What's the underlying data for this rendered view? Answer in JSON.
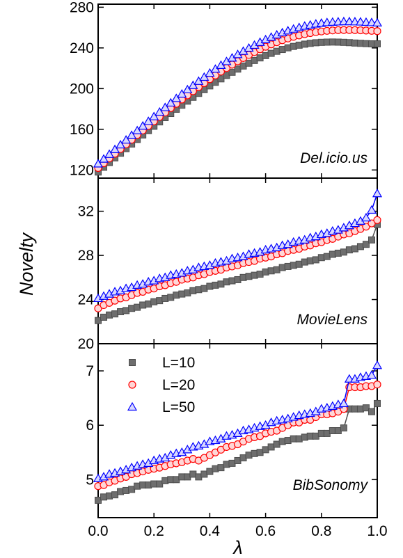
{
  "chart_data": [
    {
      "type": "line",
      "annotation": "Del.icio.us",
      "x": [
        0.0,
        0.02,
        0.04,
        0.06,
        0.08,
        0.1,
        0.12,
        0.14,
        0.16,
        0.18,
        0.2,
        0.22,
        0.24,
        0.26,
        0.28,
        0.3,
        0.32,
        0.34,
        0.36,
        0.38,
        0.4,
        0.42,
        0.44,
        0.46,
        0.48,
        0.5,
        0.52,
        0.54,
        0.56,
        0.58,
        0.6,
        0.62,
        0.64,
        0.66,
        0.68,
        0.7,
        0.72,
        0.74,
        0.76,
        0.78,
        0.8,
        0.82,
        0.84,
        0.86,
        0.88,
        0.9,
        0.92,
        0.94,
        0.96,
        0.98,
        1.0
      ],
      "series": [
        {
          "values": [
            118.0,
            122.7,
            127.3,
            131.9,
            136.5,
            141.0,
            145.5,
            150.0,
            154.4,
            158.7,
            163.0,
            167.3,
            171.5,
            175.6,
            179.7,
            183.7,
            187.7,
            191.5,
            195.3,
            199.0,
            202.7,
            206.2,
            209.6,
            212.9,
            216.1,
            219.2,
            222.2,
            225.0,
            227.7,
            230.2,
            232.5,
            234.7,
            236.7,
            238.5,
            240.1,
            241.5,
            242.7,
            243.7,
            244.5,
            245.1,
            245.5,
            245.7,
            245.8,
            245.7,
            245.5,
            245.2,
            244.8,
            244.5,
            244.2,
            244.0,
            244.0
          ]
        },
        {
          "values": [
            122.0,
            126.7,
            131.4,
            136.0,
            140.6,
            145.2,
            149.8,
            154.4,
            158.9,
            163.3,
            167.8,
            172.2,
            176.5,
            180.8,
            185.1,
            189.3,
            193.4,
            197.5,
            201.5,
            205.4,
            209.3,
            213.0,
            216.7,
            220.2,
            223.6,
            226.9,
            230.1,
            233.1,
            236.0,
            238.7,
            241.2,
            243.5,
            245.6,
            247.6,
            249.3,
            250.9,
            252.3,
            253.5,
            254.6,
            255.5,
            256.2,
            256.8,
            257.2,
            257.5,
            257.6,
            257.6,
            257.5,
            257.3,
            257.1,
            256.8,
            256.5
          ]
        },
        {
          "values": [
            126.0,
            130.7,
            135.4,
            140.1,
            144.7,
            149.4,
            154.0,
            158.6,
            163.2,
            167.8,
            172.4,
            176.9,
            181.4,
            185.9,
            190.3,
            194.6,
            198.9,
            203.1,
            207.2,
            211.2,
            215.2,
            219.1,
            222.9,
            226.6,
            230.1,
            233.5,
            236.7,
            239.8,
            242.7,
            245.5,
            248.1,
            250.5,
            252.8,
            254.9,
            256.8,
            258.5,
            260.0,
            261.4,
            262.5,
            263.5,
            264.3,
            264.9,
            265.3,
            265.6,
            265.8,
            265.8,
            265.7,
            265.5,
            265.2,
            264.9,
            264.6
          ]
        }
      ],
      "ylim": [
        112,
        283
      ],
      "yticks": [
        120,
        160,
        200,
        240,
        280
      ]
    },
    {
      "type": "line",
      "annotation": "MovieLens",
      "x": [
        0.0,
        0.02,
        0.04,
        0.06,
        0.08,
        0.1,
        0.12,
        0.14,
        0.16,
        0.18,
        0.2,
        0.22,
        0.24,
        0.26,
        0.28,
        0.3,
        0.32,
        0.34,
        0.36,
        0.38,
        0.4,
        0.42,
        0.44,
        0.46,
        0.48,
        0.5,
        0.52,
        0.54,
        0.56,
        0.58,
        0.6,
        0.62,
        0.64,
        0.66,
        0.68,
        0.7,
        0.72,
        0.74,
        0.76,
        0.78,
        0.8,
        0.82,
        0.84,
        0.86,
        0.88,
        0.9,
        0.92,
        0.94,
        0.96,
        0.98,
        1.0
      ],
      "series": [
        {
          "values": [
            22.1,
            22.4,
            22.6,
            22.7,
            22.9,
            23.0,
            23.2,
            23.3,
            23.5,
            23.6,
            23.8,
            23.9,
            24.1,
            24.2,
            24.4,
            24.5,
            24.6,
            24.8,
            24.9,
            25.0,
            25.2,
            25.3,
            25.4,
            25.6,
            25.7,
            25.8,
            26.0,
            26.1,
            26.2,
            26.3,
            26.5,
            26.6,
            26.7,
            26.9,
            27.0,
            27.1,
            27.2,
            27.4,
            27.5,
            27.6,
            27.8,
            27.9,
            28.1,
            28.2,
            28.3,
            28.5,
            28.6,
            28.8,
            29.0,
            29.4,
            30.8
          ]
        },
        {
          "values": [
            23.2,
            23.5,
            23.7,
            23.9,
            24.1,
            24.2,
            24.4,
            24.6,
            24.7,
            24.9,
            25.0,
            25.2,
            25.3,
            25.5,
            25.6,
            25.8,
            25.9,
            26.0,
            26.2,
            26.3,
            26.5,
            26.6,
            26.7,
            26.9,
            27.0,
            27.1,
            27.3,
            27.4,
            27.5,
            27.7,
            27.8,
            27.9,
            28.1,
            28.2,
            28.4,
            28.5,
            28.6,
            28.8,
            28.9,
            29.1,
            29.2,
            29.4,
            29.5,
            29.7,
            29.9,
            30.0,
            30.2,
            30.4,
            30.6,
            30.9,
            31.2
          ]
        },
        {
          "values": [
            24.1,
            24.3,
            24.5,
            24.7,
            24.8,
            25.0,
            25.1,
            25.3,
            25.4,
            25.6,
            25.7,
            25.9,
            26.0,
            26.2,
            26.3,
            26.4,
            26.6,
            26.7,
            26.9,
            27.0,
            27.1,
            27.3,
            27.4,
            27.5,
            27.7,
            27.8,
            27.9,
            28.1,
            28.2,
            28.3,
            28.5,
            28.6,
            28.7,
            28.9,
            29.0,
            29.2,
            29.3,
            29.4,
            29.6,
            29.7,
            29.9,
            30.0,
            30.2,
            30.3,
            30.5,
            30.7,
            30.9,
            31.1,
            31.4,
            32.1,
            33.6
          ]
        }
      ],
      "ylim": [
        20,
        35.0
      ],
      "yticks": [
        20,
        24,
        28,
        32
      ]
    },
    {
      "type": "line",
      "annotation": "BibSonomy",
      "x": [
        0.0,
        0.02,
        0.04,
        0.06,
        0.08,
        0.1,
        0.12,
        0.14,
        0.16,
        0.18,
        0.2,
        0.22,
        0.24,
        0.26,
        0.28,
        0.3,
        0.32,
        0.34,
        0.36,
        0.38,
        0.4,
        0.42,
        0.44,
        0.46,
        0.48,
        0.5,
        0.52,
        0.54,
        0.56,
        0.58,
        0.6,
        0.62,
        0.64,
        0.66,
        0.68,
        0.7,
        0.72,
        0.74,
        0.76,
        0.78,
        0.8,
        0.82,
        0.84,
        0.86,
        0.88,
        0.9,
        0.92,
        0.94,
        0.96,
        0.98,
        1.0
      ],
      "series": [
        {
          "name": "L=10",
          "values": [
            4.62,
            4.68,
            4.7,
            4.72,
            4.78,
            4.8,
            4.82,
            4.88,
            4.9,
            4.9,
            4.92,
            4.92,
            4.98,
            5.0,
            5.0,
            5.05,
            5.05,
            5.1,
            5.05,
            5.1,
            5.15,
            5.2,
            5.22,
            5.28,
            5.3,
            5.35,
            5.4,
            5.45,
            5.48,
            5.5,
            5.55,
            5.6,
            5.65,
            5.7,
            5.72,
            5.75,
            5.75,
            5.78,
            5.8,
            5.8,
            5.85,
            5.85,
            5.9,
            5.9,
            5.95,
            6.3,
            6.3,
            6.3,
            6.32,
            6.25,
            6.4
          ]
        },
        {
          "name": "L=20",
          "values": [
            4.88,
            4.9,
            4.95,
            4.98,
            5.02,
            5.05,
            5.1,
            5.12,
            5.15,
            5.18,
            5.2,
            5.22,
            5.25,
            5.28,
            5.3,
            5.32,
            5.35,
            5.38,
            5.35,
            5.4,
            5.45,
            5.5,
            5.55,
            5.6,
            5.62,
            5.65,
            5.7,
            5.75,
            5.78,
            5.8,
            5.85,
            5.88,
            5.9,
            5.95,
            6.0,
            6.05,
            6.05,
            6.1,
            6.1,
            6.15,
            6.2,
            6.2,
            6.22,
            6.25,
            6.3,
            6.7,
            6.7,
            6.7,
            6.72,
            6.72,
            6.75
          ]
        },
        {
          "name": "L=50",
          "values": [
            5.02,
            5.05,
            5.1,
            5.12,
            5.15,
            5.18,
            5.22,
            5.25,
            5.28,
            5.3,
            5.35,
            5.38,
            5.4,
            5.45,
            5.48,
            5.5,
            5.55,
            5.6,
            5.62,
            5.65,
            5.7,
            5.72,
            5.75,
            5.8,
            5.82,
            5.85,
            5.9,
            5.92,
            5.95,
            5.98,
            6.0,
            6.05,
            6.08,
            6.1,
            6.12,
            6.15,
            6.18,
            6.2,
            6.22,
            6.25,
            6.3,
            6.32,
            6.35,
            6.38,
            6.4,
            6.85,
            6.85,
            6.88,
            6.9,
            6.92,
            7.1
          ]
        }
      ],
      "ylim": [
        4.3,
        7.5
      ],
      "yticks": [
        5,
        6,
        7
      ]
    }
  ],
  "shared": {
    "xlabel": "λ",
    "ylabel": "Novelty",
    "xlim": [
      0.0,
      1.0
    ],
    "xticks": [
      "0.0",
      "0.2",
      "0.4",
      "0.6",
      "0.8",
      "1.0"
    ],
    "legend_position": "top-left"
  },
  "colors": {
    "L=10": "#4d4d4d",
    "L=20": "#ff0000",
    "L=50": "#0000ff"
  },
  "legend": [
    {
      "label": "L=10",
      "marker": "square"
    },
    {
      "label": "L=20",
      "marker": "circle"
    },
    {
      "label": "L=50",
      "marker": "triangle"
    }
  ]
}
